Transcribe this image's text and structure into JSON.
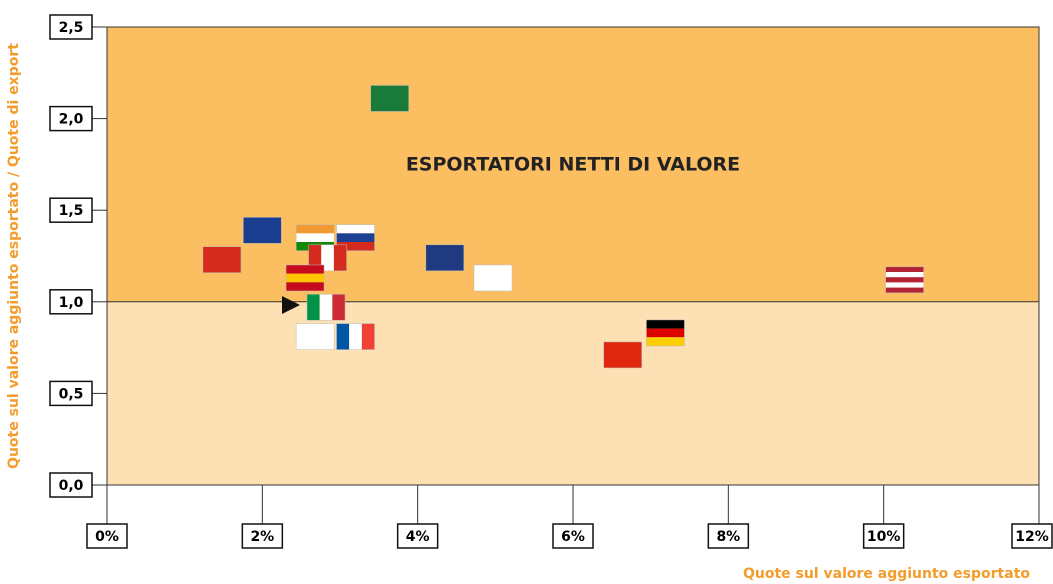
{
  "chart_data": {
    "type": "scatter",
    "annotation": "ESPORTATORI NETTI DI VALORE",
    "xlabel": "Quote sul valore aggiunto esportato",
    "ylabel": "Quote sul valore aggiunto esportato / Quote di export",
    "x": [
      3.64,
      2.0,
      1.48,
      2.68,
      3.2,
      2.84,
      2.55,
      4.35,
      4.97,
      10.27,
      2.82,
      2.68,
      3.2,
      6.64,
      7.19
    ],
    "values": [
      2.11,
      1.39,
      1.23,
      1.35,
      1.35,
      1.24,
      1.13,
      1.24,
      1.13,
      1.12,
      0.97,
      0.81,
      0.81,
      0.71,
      0.83
    ],
    "colors": [
      [
        "#1a7a3a"
      ],
      [
        "#1a3d8f"
      ],
      [
        "#d52b1e"
      ],
      [
        "#f29933",
        "#ffffff",
        "#138808"
      ],
      [
        "#ffffff",
        "#1c3f94",
        "#d52b1e"
      ],
      [
        "#d52b1e",
        "#ffffff",
        "#d52b1e"
      ],
      [
        "#c60b1e",
        "#ffc400",
        "#c60b1e"
      ],
      [
        "#1f3a80"
      ],
      [
        "#ffffff"
      ],
      [
        "#b22234",
        "#ffffff",
        "#b22234",
        "#ffffff",
        "#b22234"
      ],
      [
        "#009246",
        "#ffffff",
        "#ce2b37"
      ],
      [
        "#ffffff"
      ],
      [
        "#0055a4",
        "#ffffff",
        "#ef4135"
      ],
      [
        "#de2910"
      ],
      [
        "#000000",
        "#dd0000",
        "#ffce00"
      ]
    ],
    "stripe_direction": [
      "h",
      "h",
      "h",
      "h",
      "h",
      "v",
      "h",
      "h",
      "h",
      "h",
      "v",
      "h",
      "v",
      "h",
      "h"
    ],
    "threshold": 1.0,
    "upper_color": "#fbbf62",
    "lower_color": "#fde0b4",
    "label_color": "#f39c2b",
    "xlim": [
      0,
      12
    ],
    "ylim": [
      0,
      2.5
    ],
    "xticks": [
      {
        "value": 0,
        "label": "0%"
      },
      {
        "value": 2,
        "label": "2%"
      },
      {
        "value": 4,
        "label": "4%"
      },
      {
        "value": 6,
        "label": "6%"
      },
      {
        "value": 8,
        "label": "8%"
      },
      {
        "value": 10,
        "label": "10%"
      },
      {
        "value": 12,
        "label": "12%"
      }
    ],
    "yticks": [
      {
        "value": 0,
        "label": "0,0"
      },
      {
        "value": 0.5,
        "label": "0,5"
      },
      {
        "value": 1.0,
        "label": "1,0"
      },
      {
        "value": 1.5,
        "label": "1,5"
      },
      {
        "value": 2.0,
        "label": "2,0"
      },
      {
        "value": 2.5,
        "label": "2,5"
      }
    ]
  }
}
